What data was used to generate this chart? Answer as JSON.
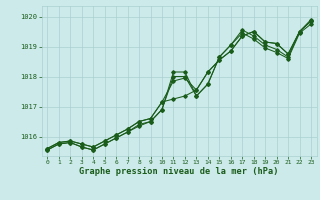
{
  "title": "Graphe pression niveau de la mer (hPa)",
  "bg_color": "#cceaea",
  "line_color": "#1a5c1a",
  "grid_color": "#aacfcf",
  "xmin": -0.5,
  "xmax": 23.5,
  "ymin": 1015.35,
  "ymax": 1020.35,
  "yticks": [
    1016,
    1017,
    1018,
    1019,
    1020
  ],
  "xticks": [
    0,
    1,
    2,
    3,
    4,
    5,
    6,
    7,
    8,
    9,
    10,
    11,
    12,
    13,
    14,
    15,
    16,
    17,
    18,
    19,
    20,
    21,
    22,
    23
  ],
  "series1_x": [
    0,
    1,
    2,
    3,
    4,
    5,
    6,
    7,
    8,
    9,
    10,
    11,
    12,
    13,
    14,
    15,
    16,
    17,
    18,
    19,
    20,
    21,
    22,
    23
  ],
  "series1_y": [
    1015.6,
    1015.8,
    1015.85,
    1015.75,
    1015.65,
    1015.85,
    1016.05,
    1016.25,
    1016.5,
    1016.6,
    1017.15,
    1017.25,
    1017.35,
    1017.55,
    1018.15,
    1018.55,
    1018.85,
    1019.35,
    1019.5,
    1019.15,
    1019.1,
    1018.75,
    1019.5,
    1019.85
  ],
  "series2_x": [
    0,
    1,
    2,
    3,
    4,
    5,
    6,
    7,
    8,
    9,
    10,
    11,
    12,
    13,
    14,
    15,
    16,
    17,
    18,
    19,
    20,
    21,
    22,
    23
  ],
  "series2_y": [
    1015.6,
    1015.8,
    1015.85,
    1015.75,
    1015.65,
    1015.85,
    1016.05,
    1016.25,
    1016.5,
    1016.6,
    1017.15,
    1017.85,
    1017.95,
    1017.55,
    1018.15,
    1018.55,
    1018.85,
    1019.35,
    1019.5,
    1019.15,
    1019.1,
    1018.75,
    1019.5,
    1019.85
  ],
  "series3_x": [
    0,
    1,
    2,
    3,
    4,
    5,
    6,
    7,
    8,
    9,
    10,
    11,
    12,
    13,
    14,
    15,
    16,
    17,
    18,
    19,
    20,
    21,
    22,
    23
  ],
  "series3_y": [
    1015.55,
    1015.75,
    1015.8,
    1015.65,
    1015.55,
    1015.75,
    1015.95,
    1016.15,
    1016.4,
    1016.5,
    1016.9,
    1018.15,
    1018.15,
    1017.35,
    1017.75,
    1018.65,
    1019.05,
    1019.55,
    1019.35,
    1019.05,
    1018.9,
    1018.65,
    1019.5,
    1019.9
  ],
  "series4_x": [
    0,
    1,
    2,
    3,
    4,
    5,
    6,
    7,
    8,
    9,
    10,
    11,
    12,
    13,
    14,
    15,
    16,
    17,
    18,
    19,
    20,
    21,
    22,
    23
  ],
  "series4_y": [
    1015.55,
    1015.75,
    1015.8,
    1015.65,
    1015.55,
    1015.75,
    1015.95,
    1016.15,
    1016.35,
    1016.5,
    1016.9,
    1018.0,
    1018.0,
    1017.35,
    1017.75,
    1018.65,
    1019.05,
    1019.45,
    1019.25,
    1018.95,
    1018.8,
    1018.6,
    1019.45,
    1019.75
  ]
}
